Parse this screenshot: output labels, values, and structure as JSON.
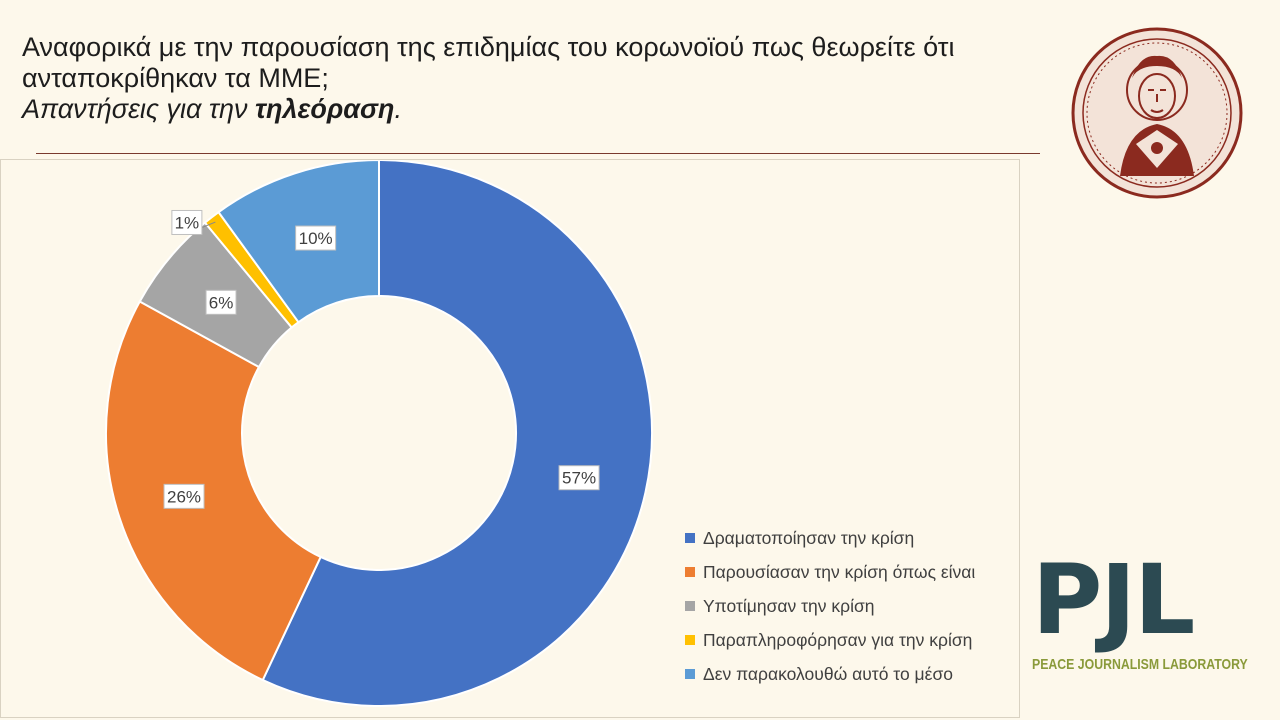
{
  "title": {
    "line1": "Αναφορικά με την παρουσίαση της επιδημίας του κορωνοϊού πως θεωρείτε ότι",
    "line2": "ανταποκρίθηκαν τα ΜΜΕ;",
    "line3_prefix": "Απαντήσεις για την ",
    "line3_bold": "τηλεόραση",
    "line3_suffix": "."
  },
  "logo": {
    "seal_icon": "university-seal-icon",
    "pjl_letters": "PJL",
    "pjl_tagline": "PEACE JOURNALISM LABORATORY"
  },
  "chart_data": {
    "type": "pie",
    "variant": "donut",
    "categories": [
      "Δραματοποίησαν την κρίση",
      "Παρουσίασαν την κρίση όπως είναι",
      "Υποτίμησαν την κρίση",
      "Παραπληροφόρησαν για την κρίση",
      "Δεν παρακολουθώ αυτό το μέσο"
    ],
    "values": [
      57,
      26,
      6,
      1,
      10
    ],
    "labels": [
      "57%",
      "26%",
      "6%",
      "1%",
      "10%"
    ],
    "colors": [
      "#4472C4",
      "#ED7D31",
      "#A5A5A5",
      "#FFC000",
      "#5B9BD5"
    ],
    "legend_position": "right"
  }
}
